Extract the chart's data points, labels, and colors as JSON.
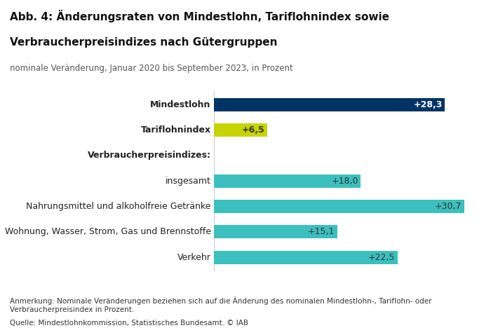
{
  "title_line1": "Abb. 4: Änderungsraten von Mindestlohn, Tariflohnindex sowie",
  "title_line2": "Verbraucherpreisindizes nach Gütergruppen",
  "subtitle": "nominale Veränderung, Januar 2020 bis September 2023, in Prozent",
  "categories": [
    "Mindestlohn",
    "Tariflohnindex",
    "Verbraucherpreisindizes:",
    "insgesamt",
    "Nahrungsmittel und alkoholfreie Getränke",
    "Wohnung, Wasser, Strom, Gas und Brennstoffe",
    "Verkehr"
  ],
  "values": [
    28.3,
    6.5,
    null,
    18.0,
    30.7,
    15.1,
    22.5
  ],
  "bar_colors": [
    "#003366",
    "#c8d400",
    null,
    "#3bbfbf",
    "#3bbfbf",
    "#3bbfbf",
    "#3bbfbf"
  ],
  "label_colors": [
    "#ffffff",
    "#333333",
    null,
    "#333333",
    "#333333",
    "#333333",
    "#333333"
  ],
  "labels": [
    "+28,3",
    "+6,5",
    null,
    "+18,0",
    "+30,7",
    "+15,1",
    "+22,5"
  ],
  "bold_labels": [
    true,
    true,
    true,
    false,
    false,
    false,
    false
  ],
  "annotation": "Anmerkung: Nominale Veränderungen beziehen sich auf die Änderung des nominalen Mindestlohn-, Tariflohn- oder\nVerbraucherpreisindex in Prozent.",
  "source": "Quelle: Mindestlohnkommission, Statistisches Bundesamt. © IAB",
  "background_color": "#ffffff",
  "xlim": [
    0,
    33
  ],
  "bar_height": 0.52
}
